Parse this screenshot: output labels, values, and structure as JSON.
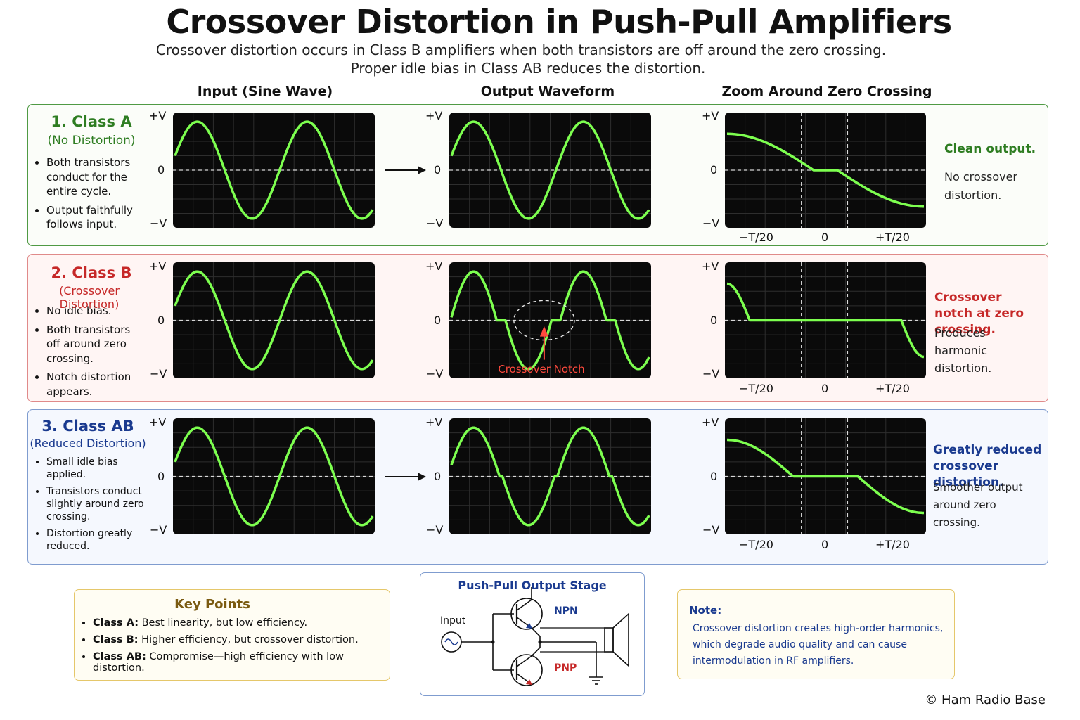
{
  "header": {
    "title": "Crossover Distortion in Push-Pull Amplifiers",
    "subtitle1": "Crossover distortion occurs in Class B amplifiers when both transistors are off around the zero crossing.",
    "subtitle2": "Proper idle bias in Class AB reduces the distortion."
  },
  "columns": {
    "input": "Input (Sine Wave)",
    "output": "Output Waveform",
    "zoom": "Zoom Around Zero Crossing"
  },
  "axis": {
    "pos": "+V",
    "zero": "0",
    "neg": "−V",
    "t_neg": "−T/20",
    "t_zero": "0",
    "t_pos": "+T/20"
  },
  "rows": [
    {
      "title": "1. Class A",
      "subtitle": "(No Distortion)",
      "bullets": [
        "Both transistors conduct for the entire cycle.",
        "Output faithfully follows input."
      ],
      "note_head": "Clean output.",
      "note_body": "No crossover distortion.",
      "color": "#2e7d22",
      "dead_zone_fraction": 0.0
    },
    {
      "title": "2. Class B",
      "subtitle": "(Crossover Distortion)",
      "bullets": [
        "No idle bias.",
        "Both transistors off around zero crossing.",
        "Notch distortion appears."
      ],
      "note_head": "Crossover notch at zero crossing.",
      "note_body": "Produces harmonic distortion.",
      "color": "#c62828",
      "annotation": "Crossover Notch",
      "dead_zone_fraction": 0.25
    },
    {
      "title": "3. Class AB",
      "subtitle": "(Reduced Distortion)",
      "bullets": [
        "Small idle bias applied.",
        "Transistors conduct slightly around zero crossing.",
        "Distortion greatly reduced."
      ],
      "note_head": "Greatly reduced crossover distortion.",
      "note_body": "Smoother output around zero crossing.",
      "color": "#1a3a8f",
      "dead_zone_fraction": 0.08
    }
  ],
  "key_points": {
    "title": "Key Points",
    "items": [
      {
        "term": "Class A:",
        "text": "Best linearity, but low efficiency."
      },
      {
        "term": "Class B:",
        "text": "Higher efficiency, but crossover distortion."
      },
      {
        "term": "Class AB:",
        "text": "Compromise—high efficiency with low distortion."
      }
    ]
  },
  "circuit": {
    "title": "Push-Pull Output Stage",
    "input_label": "Input",
    "npn_label": "NPN",
    "pnp_label": "PNP"
  },
  "note_box": {
    "title": "Note:",
    "text": "Crossover distortion creates high-order harmonics, which degrade audio quality and can cause intermodulation in RF amplifiers."
  },
  "footer": {
    "copyright": "© Ham Radio Base"
  },
  "colors": {
    "trace": "#7dff4f",
    "scope_bg": "#0a0a0a",
    "grid": "#2e2e2e"
  }
}
